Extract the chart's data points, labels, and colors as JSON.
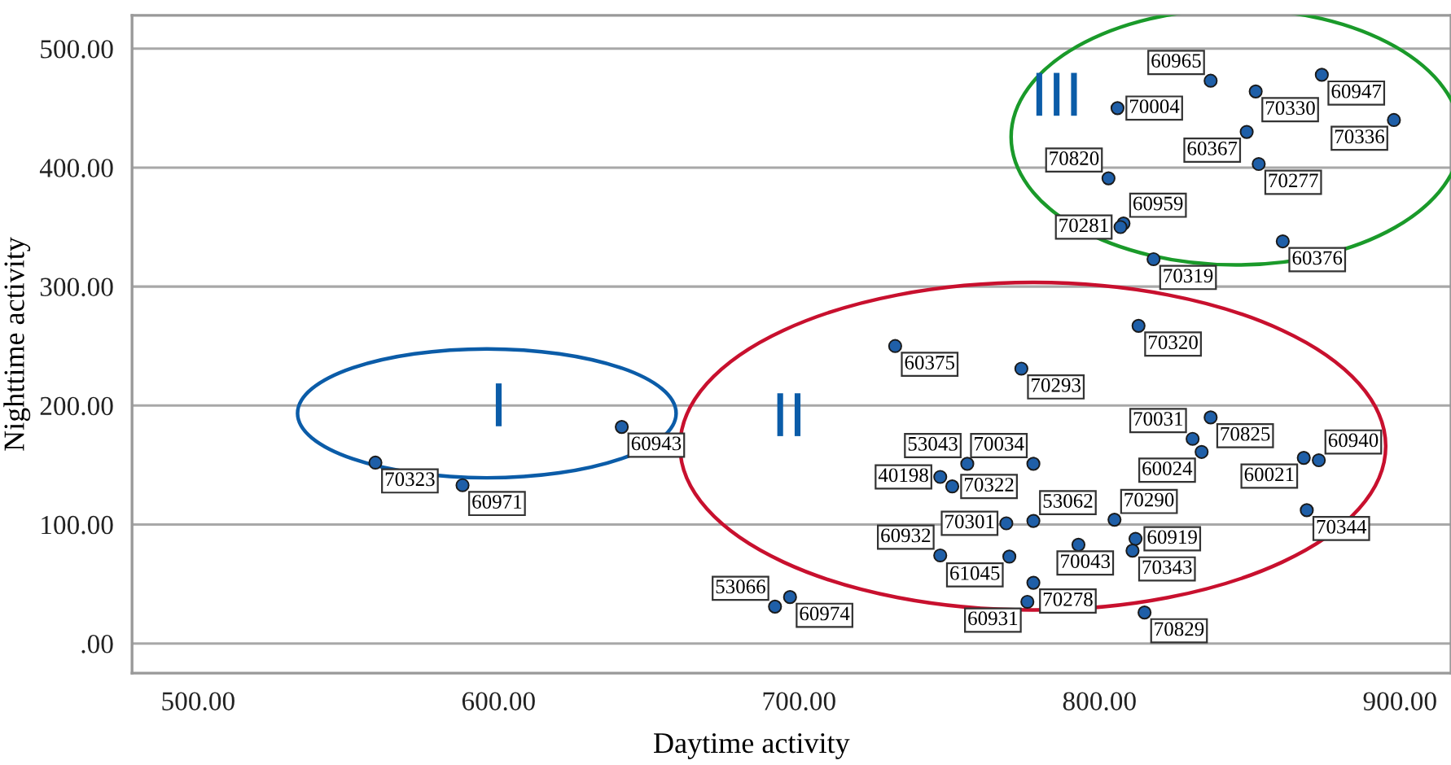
{
  "chart_data": {
    "type": "scatter",
    "xlabel": "Daytime activity",
    "ylabel": "Nighttime activity",
    "xlim": [
      478,
      917
    ],
    "ylim": [
      -25,
      528
    ],
    "xticks": [
      {
        "value": 500,
        "label": "500.00"
      },
      {
        "value": 600,
        "label": "600.00"
      },
      {
        "value": 700,
        "label": "700.00"
      },
      {
        "value": 800,
        "label": "800.00"
      },
      {
        "value": 900,
        "label": "900.00"
      }
    ],
    "yticks": [
      {
        "value": 0,
        "label": ".00"
      },
      {
        "value": 100,
        "label": "100.00"
      },
      {
        "value": 200,
        "label": "200.00"
      },
      {
        "value": 300,
        "label": "300.00"
      },
      {
        "value": 400,
        "label": "400.00"
      },
      {
        "value": 500,
        "label": "500.00"
      }
    ],
    "grid": "y",
    "legend": false,
    "marker": "circle",
    "series": [
      {
        "color": "#1f5fa8",
        "x": [
          837,
          852,
          874,
          898,
          806,
          849,
          853,
          803,
          808,
          807,
          818,
          861,
          813,
          732,
          774,
          837,
          831,
          834,
          868,
          873,
          756,
          778,
          747,
          751,
          869,
          778,
          769,
          805,
          812,
          811,
          793,
          747,
          770,
          778,
          776,
          815,
          692,
          697,
          559,
          588,
          641
        ],
        "values": [
          473,
          464,
          478,
          440,
          450,
          430,
          403,
          391,
          353,
          350,
          323,
          338,
          267,
          250,
          231,
          190,
          172,
          161,
          156,
          154,
          151,
          151,
          140,
          132,
          112,
          103,
          101,
          104,
          88,
          78,
          83,
          74,
          73,
          51,
          35,
          26,
          31,
          39,
          152,
          133,
          182
        ]
      }
    ],
    "annotations": [
      {
        "text": "60965",
        "x": 837,
        "y": 473
      },
      {
        "text": "70330",
        "x": 852,
        "y": 464
      },
      {
        "text": "60947",
        "x": 874,
        "y": 478
      },
      {
        "text": "70336",
        "x": 898,
        "y": 440
      },
      {
        "text": "70004",
        "x": 806,
        "y": 450
      },
      {
        "text": "60367",
        "x": 849,
        "y": 430
      },
      {
        "text": "70277",
        "x": 853,
        "y": 403
      },
      {
        "text": "70820",
        "x": 803,
        "y": 391
      },
      {
        "text": "60959",
        "x": 808,
        "y": 353
      },
      {
        "text": "70281",
        "x": 807,
        "y": 350
      },
      {
        "text": "70319",
        "x": 818,
        "y": 323
      },
      {
        "text": "60376",
        "x": 861,
        "y": 338
      },
      {
        "text": "70320",
        "x": 813,
        "y": 267
      },
      {
        "text": "60375",
        "x": 732,
        "y": 250
      },
      {
        "text": "70293",
        "x": 774,
        "y": 231
      },
      {
        "text": "70825",
        "x": 837,
        "y": 190
      },
      {
        "text": "70031",
        "x": 831,
        "y": 172
      },
      {
        "text": "60024",
        "x": 834,
        "y": 161
      },
      {
        "text": "60021",
        "x": 868,
        "y": 156
      },
      {
        "text": "60940",
        "x": 873,
        "y": 154
      },
      {
        "text": "53043",
        "x": 756,
        "y": 151
      },
      {
        "text": "70034",
        "x": 778,
        "y": 151
      },
      {
        "text": "40198",
        "x": 747,
        "y": 140
      },
      {
        "text": "70322",
        "x": 751,
        "y": 132
      },
      {
        "text": "70344",
        "x": 869,
        "y": 112
      },
      {
        "text": "53062",
        "x": 778,
        "y": 103
      },
      {
        "text": "70301",
        "x": 769,
        "y": 101
      },
      {
        "text": "70290",
        "x": 805,
        "y": 104
      },
      {
        "text": "60919",
        "x": 812,
        "y": 88
      },
      {
        "text": "70343",
        "x": 811,
        "y": 78
      },
      {
        "text": "70043",
        "x": 793,
        "y": 83
      },
      {
        "text": "60932",
        "x": 747,
        "y": 74
      },
      {
        "text": "61045",
        "x": 770,
        "y": 73
      },
      {
        "text": "70278",
        "x": 778,
        "y": 51
      },
      {
        "text": "60931",
        "x": 776,
        "y": 35
      },
      {
        "text": "70829",
        "x": 815,
        "y": 26
      },
      {
        "text": "53066",
        "x": 692,
        "y": 31
      },
      {
        "text": "60974",
        "x": 697,
        "y": 39
      },
      {
        "text": "70323",
        "x": 559,
        "y": 152
      },
      {
        "text": "60971",
        "x": 588,
        "y": 133
      },
      {
        "text": "60943",
        "x": 641,
        "y": 182
      },
      "I",
      "II",
      "III"
    ]
  }
}
